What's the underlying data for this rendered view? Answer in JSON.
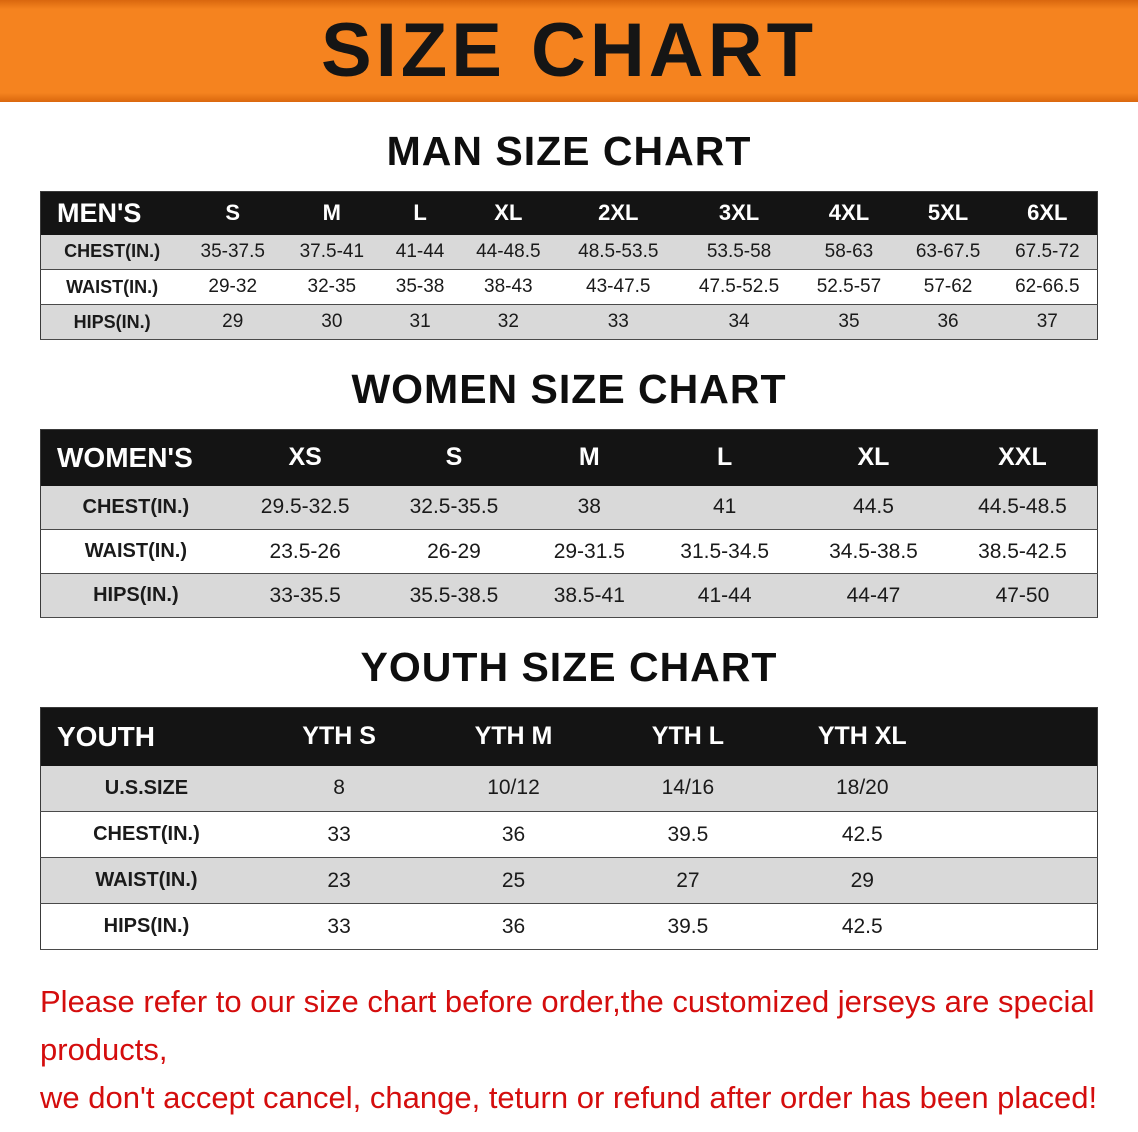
{
  "banner": {
    "title": "SIZE CHART",
    "bg_color": "#f5831f",
    "title_color": "#151515"
  },
  "sections": {
    "men": {
      "heading": "MAN SIZE CHART",
      "table": {
        "header": [
          "MEN'S",
          "S",
          "M",
          "L",
          "XL",
          "2XL",
          "3XL",
          "4XL",
          "5XL",
          "6XL"
        ],
        "rows": [
          [
            "CHEST(IN.)",
            "35-37.5",
            "37.5-41",
            "41-44",
            "44-48.5",
            "48.5-53.5",
            "53.5-58",
            "58-63",
            "63-67.5",
            "67.5-72"
          ],
          [
            "WAIST(IN.)",
            "29-32",
            "32-35",
            "35-38",
            "38-43",
            "43-47.5",
            "47.5-52.5",
            "52.5-57",
            "57-62",
            "62-66.5"
          ],
          [
            "HIPS(IN.)",
            "29",
            "30",
            "31",
            "32",
            "33",
            "34",
            "35",
            "36",
            "37"
          ]
        ]
      }
    },
    "women": {
      "heading": "WOMEN SIZE CHART",
      "table": {
        "header": [
          "WOMEN'S",
          "XS",
          "S",
          "M",
          "L",
          "XL",
          "XXL"
        ],
        "rows": [
          [
            "CHEST(IN.)",
            "29.5-32.5",
            "32.5-35.5",
            "38",
            "41",
            "44.5",
            "44.5-48.5"
          ],
          [
            "WAIST(IN.)",
            "23.5-26",
            "26-29",
            "29-31.5",
            "31.5-34.5",
            "34.5-38.5",
            "38.5-42.5"
          ],
          [
            "HIPS(IN.)",
            "33-35.5",
            "35.5-38.5",
            "38.5-41",
            "41-44",
            "44-47",
            "47-50"
          ]
        ]
      }
    },
    "youth": {
      "heading": "YOUTH SIZE CHART",
      "table": {
        "header": [
          "YOUTH",
          "YTH S",
          "YTH M",
          "YTH L",
          "YTH XL"
        ],
        "filler": true,
        "rows": [
          [
            "U.S.SIZE",
            "8",
            "10/12",
            "14/16",
            "18/20"
          ],
          [
            "CHEST(IN.)",
            "33",
            "36",
            "39.5",
            "42.5"
          ],
          [
            "WAIST(IN.)",
            "23",
            "25",
            "27",
            "29"
          ],
          [
            "HIPS(IN.)",
            "33",
            "36",
            "39.5",
            "42.5"
          ]
        ]
      }
    }
  },
  "footer": {
    "line1": "Please refer to our size chart before order,the customized jerseys are special products,",
    "line2": "we don't accept cancel, change, teturn or refund after order has been placed!"
  },
  "colors": {
    "banner_bg": "#f5831f",
    "table_header_bg": "#141414",
    "row_shade": "#d9d9d9",
    "note_red": "#d40d0d"
  }
}
